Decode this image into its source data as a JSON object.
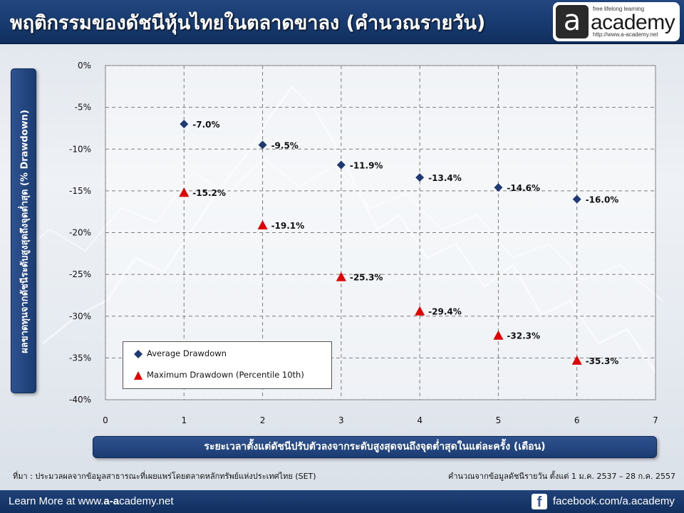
{
  "header": {
    "title": "พฤติกรรมของดัชนีหุ้นไทยในตลาดขาลง (คำนวณรายวัน)"
  },
  "logo": {
    "mark": "a",
    "tagline": "free lifelong learning",
    "wordmark": "academy",
    "url": "http://www.a-academy.net"
  },
  "footer": {
    "learn_prefix": "Learn More at www.",
    "learn_brand": "a-a",
    "learn_suffix": "cademy.net",
    "facebook_icon": "facebook-icon",
    "facebook_glyph": "f",
    "facebook_url": "facebook.com/a.academy",
    "background_color": "#173a70"
  },
  "notes": {
    "source": "ที่มา : ประมวลผลจากข้อมูลสาธารณะที่เผยแพร่โดยตลาดหลักทรัพย์แห่งประเทศไทย (SET)",
    "period": "คำนวณจากข้อมูลดัชนีรายวัน ตั้งแต่ 1 ม.ค. 2537 – 28 ก.ค. 2557"
  },
  "chart_data": {
    "type": "scatter",
    "title": "พฤติกรรมของดัชนีหุ้นไทยในตลาดขาลง (คำนวณรายวัน)",
    "xlabel": "ระยะเวลาตั้งแต่ดัชนีปรับตัวลงจากระดับสูงสุดจนถึงจุดต่ำสุดในแต่ละครั้ง (เดือน)",
    "ylabel": "ผลขาดทุนจากดัชนีระดับสูงสุดถึงจุดต่ำสุด (% Drawdown)",
    "xlim": [
      0,
      7
    ],
    "ylim": [
      -40,
      0
    ],
    "x_ticks": [
      "0",
      "1",
      "2",
      "3",
      "4",
      "5",
      "6",
      "7"
    ],
    "y_ticks": [
      "0%",
      "-5%",
      "-10%",
      "-15%",
      "-20%",
      "-25%",
      "-30%",
      "-35%",
      "-40%"
    ],
    "grid": true,
    "legend_position": "bottom-left",
    "series": [
      {
        "name": "Average Drawdown",
        "marker": "diamond",
        "color": "#1f3a73",
        "x": [
          1,
          2,
          3,
          4,
          5,
          6
        ],
        "y": [
          -7.0,
          -9.5,
          -11.9,
          -13.4,
          -14.6,
          -16.0
        ],
        "labels": [
          "-7.0%",
          "-9.5%",
          "-11.9%",
          "-13.4%",
          "-14.6%",
          "-16.0%"
        ]
      },
      {
        "name": "Maximum Drawdown (Percentile 10th)",
        "marker": "triangle",
        "color": "#e00000",
        "x": [
          1,
          2,
          3,
          4,
          5,
          6
        ],
        "y": [
          -15.2,
          -19.1,
          -25.3,
          -29.4,
          -32.3,
          -35.3
        ],
        "labels": [
          "-15.2%",
          "-19.1%",
          "-25.3%",
          "-29.4%",
          "-32.3%",
          "-35.3%"
        ]
      }
    ]
  }
}
